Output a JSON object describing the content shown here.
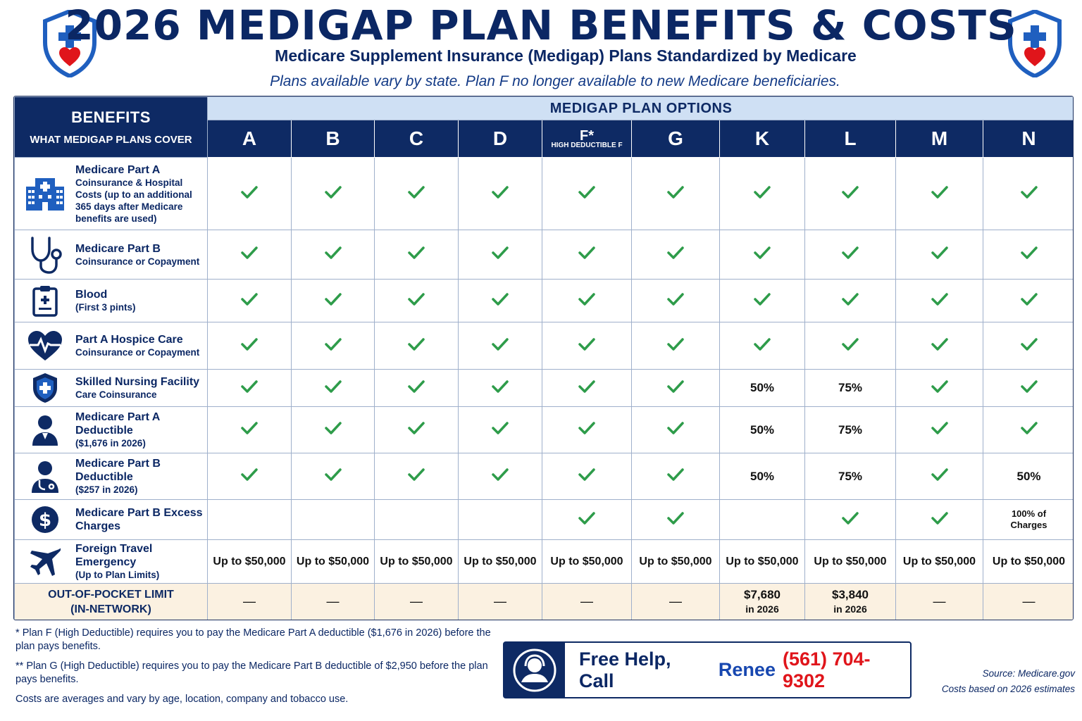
{
  "header": {
    "title": "2026 MEDIGAP PLAN BENEFITS & COSTS",
    "subtitle": "Medicare Supplement Insurance (Medigap) Plans Standardized by Medicare",
    "note": "Plans available vary by state.  Plan F no longer available to new Medicare beneficiaries."
  },
  "table": {
    "benefits_header": "BENEFITS",
    "benefits_subheader": "WHAT MEDIGAP PLANS COVER",
    "options_header": "MEDIGAP PLAN OPTIONS",
    "plans": [
      {
        "label": "A"
      },
      {
        "label": "B"
      },
      {
        "label": "C"
      },
      {
        "label": "D"
      },
      {
        "label": "F*",
        "sub": "HIGH DEDUCTIBLE F"
      },
      {
        "label": "G"
      },
      {
        "label": "K"
      },
      {
        "label": "L"
      },
      {
        "label": "M"
      },
      {
        "label": "N"
      }
    ],
    "rows": [
      {
        "title": "Medicare Part A",
        "desc": "Coinsurance & Hospital Costs (up to an additional 365 days after Medicare benefits are used)",
        "icon": "hospital-icon",
        "cells": [
          "check",
          "check",
          "check",
          "check",
          "check",
          "check",
          "check",
          "check",
          "check",
          "check"
        ]
      },
      {
        "title": "Medicare Part B",
        "desc": "Coinsurance or Copayment",
        "icon": "stethoscope-icon",
        "cells": [
          "check",
          "check",
          "check",
          "check",
          "check",
          "check",
          "check",
          "check",
          "check",
          "check"
        ]
      },
      {
        "title": "Blood",
        "desc": "(First 3 pints)",
        "icon": "clipboard-icon",
        "cells": [
          "check",
          "check",
          "check",
          "check",
          "check",
          "check",
          "check",
          "check",
          "check",
          "check"
        ]
      },
      {
        "title": "Part A Hospice Care",
        "desc": "Coinsurance or Copayment",
        "icon": "heart-pulse-icon",
        "cells": [
          "check",
          "check",
          "check",
          "check",
          "check",
          "check",
          "check",
          "check",
          "check",
          "check"
        ]
      },
      {
        "title": "Skilled Nursing Facility",
        "desc": "Care Coinsurance",
        "icon": "shield-cross-icon",
        "cells": [
          "check",
          "check",
          "check",
          "check",
          "check",
          "check",
          "50%",
          "75%",
          "check",
          "check"
        ]
      },
      {
        "title": "Medicare Part A Deductible",
        "desc": "($1,676 in 2026)",
        "icon": "person-icon",
        "cells": [
          "check",
          "check",
          "check",
          "check",
          "check",
          "check",
          "50%",
          "75%",
          "check",
          "check"
        ]
      },
      {
        "title": "Medicare Part B Deductible",
        "desc": "($257 in 2026)",
        "icon": "doctor-icon",
        "cells": [
          "check",
          "check",
          "check",
          "check",
          "check",
          "check",
          "50%",
          "75%",
          "check",
          "50%"
        ]
      },
      {
        "title": "Medicare Part B Excess Charges",
        "desc": "",
        "icon": "dollar-icon",
        "cells": [
          "",
          "",
          "",
          "",
          "check",
          "check",
          "",
          "check",
          "check",
          "100% of Charges"
        ]
      },
      {
        "title": "Foreign Travel Emergency",
        "desc": "(Up to Plan Limits)",
        "icon": "airplane-icon",
        "cells": [
          "Up to $50,000",
          "Up to $50,000",
          "Up to $50,000",
          "Up to $50,000",
          "Up to $50,000",
          "Up to $50,000",
          "Up to $50,000",
          "Up to $50,000",
          "Up to $50,000",
          "Up to $50,000"
        ]
      }
    ],
    "oop": {
      "label": "OUT-OF-POCKET LIMIT (IN-NETWORK)",
      "cells": [
        {
          "value": "—"
        },
        {
          "value": "—"
        },
        {
          "value": "—"
        },
        {
          "value": "—"
        },
        {
          "value": "—"
        },
        {
          "value": "—"
        },
        {
          "value": "$7,680",
          "sub": "in 2026"
        },
        {
          "value": "$3,840",
          "sub": "in 2026"
        },
        {
          "value": "—"
        },
        {
          "value": "—"
        }
      ]
    }
  },
  "footnotes": {
    "f1_mark": "*",
    "f1": "Plan F (High Deductible) requires you to pay the Medicare Part A deductible ($1,676 in 2026) before the plan pays benefits.",
    "f2_mark": "**",
    "f2": "Plan G (High Deductible) requires you to pay the Medicare Part B deductible of $2,950 before the plan pays benefits.",
    "f3": "Costs are averages and vary by age, location, company and tobacco use."
  },
  "help": {
    "call": "Free Help, Call",
    "name": "Renee",
    "phone": "(561) 704-9302"
  },
  "source": {
    "line1": "Source: Medicare.gov",
    "line2": "Costs based on 2026 estimates"
  },
  "colors": {
    "navy": "#0e2a64",
    "light_blue_header": "#cfe0f4",
    "check_green": "#2e9c4a",
    "phone_red": "#e0151b",
    "name_blue": "#1747b0",
    "oop_bg": "#fbf1e1",
    "shield_blue": "#1f5fbf",
    "heart_red": "#e0151b"
  }
}
